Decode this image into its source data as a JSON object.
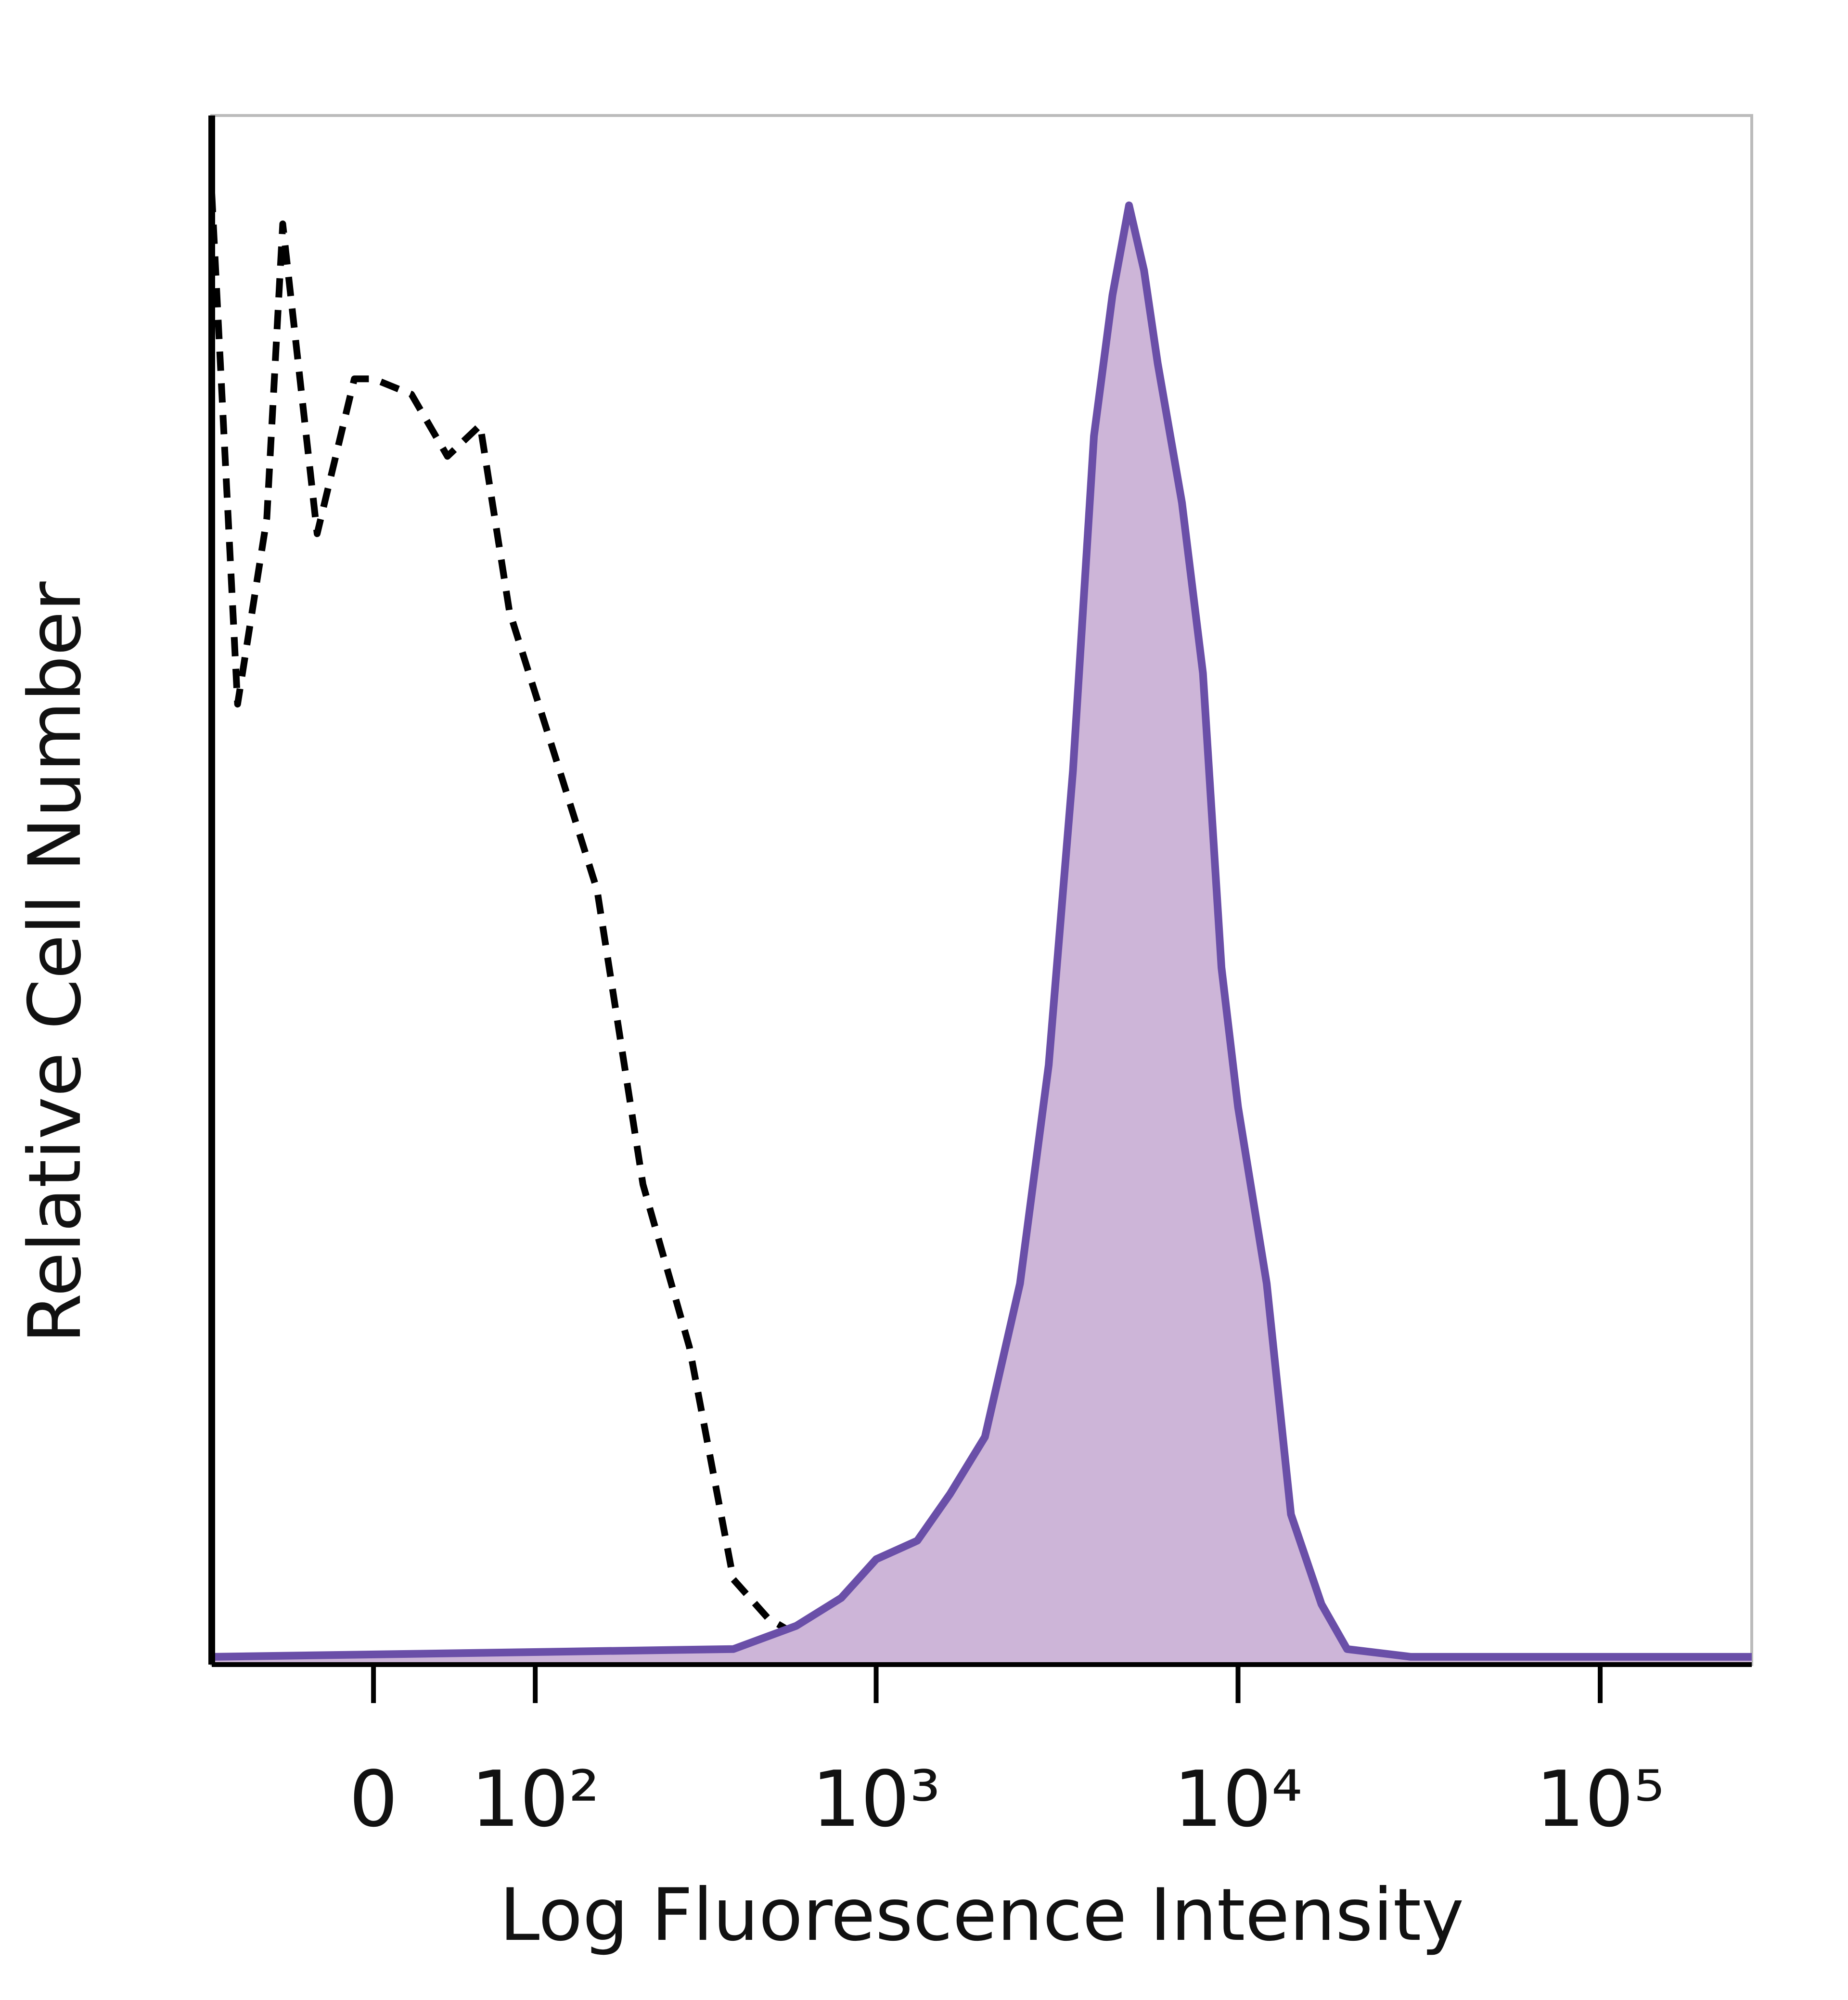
{
  "chart_data": {
    "type": "histogram-overlay",
    "xlabel": "Log Fluorescence Intensity",
    "ylabel": "Relative Cell Number",
    "xscale": "biexponential",
    "xlim": [
      -100,
      262144
    ],
    "xticks": [
      0,
      {
        "value": 100,
        "label": "10²"
      },
      {
        "value": 1000,
        "label": "10³"
      },
      {
        "value": 10000,
        "label": "10⁴"
      },
      {
        "value": 100000,
        "label": "10⁵"
      }
    ],
    "ylim": [
      0,
      100
    ],
    "series": [
      {
        "color": "#000000",
        "style": "dashed",
        "x": [
          -100,
          -80,
          -60,
          -50,
          -30,
          -10,
          0,
          20,
          40,
          60,
          80,
          120,
          160,
          220,
          300,
          400,
          500,
          700,
          1000,
          262144
        ],
        "values": [
          95,
          62,
          74,
          93,
          73,
          83,
          83,
          82,
          78,
          80,
          68,
          58,
          50,
          31,
          20.5,
          5.5,
          3,
          1,
          0.5,
          0.5
        ]
      },
      {
        "color": "#6a4fa8",
        "fill": "#cdb5d8",
        "style": "solid",
        "x": [
          -100,
          400,
          600,
          800,
          1000,
          1300,
          1600,
          2000,
          2500,
          3000,
          3500,
          4000,
          4500,
          5000,
          5500,
          6000,
          7000,
          8000,
          9000,
          10000,
          12000,
          14000,
          17000,
          20000,
          30000,
          262144
        ],
        "values": [
          0.5,
          1,
          2.5,
          4.3,
          6.8,
          8,
          11,
          14.7,
          24.6,
          38.7,
          57.7,
          79.3,
          88.4,
          94.2,
          90,
          84,
          75,
          64,
          45,
          36,
          24.6,
          9.7,
          3.9,
          1,
          0.5,
          0.5
        ]
      }
    ]
  }
}
